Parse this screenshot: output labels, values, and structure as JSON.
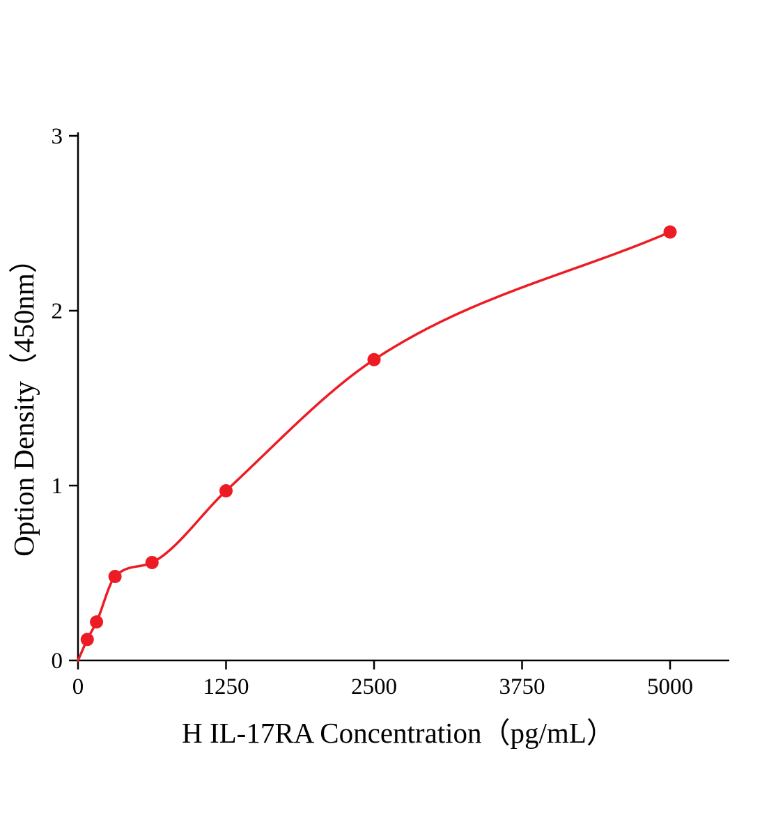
{
  "chart_data": {
    "type": "scatter",
    "title": "",
    "xlabel": "H IL-17RA Concentration（pg/mL）",
    "ylabel": "Option Density（450nm）",
    "x": [
      78.1,
      156.3,
      312.5,
      625,
      1250,
      2500,
      5000
    ],
    "y": [
      0.12,
      0.22,
      0.48,
      0.56,
      0.97,
      1.72,
      2.45
    ],
    "curve_origin": [
      0,
      0
    ],
    "x_ticks": [
      0,
      1250,
      2500,
      3750,
      5000
    ],
    "y_ticks": [
      0,
      1,
      2,
      3
    ],
    "xlim": [
      0,
      5500
    ],
    "ylim": [
      0,
      3
    ],
    "grid": false,
    "legend": "none",
    "marker_color": "#ed1c24",
    "curve_color": "#ed1c24",
    "axis_color": "#000000"
  }
}
